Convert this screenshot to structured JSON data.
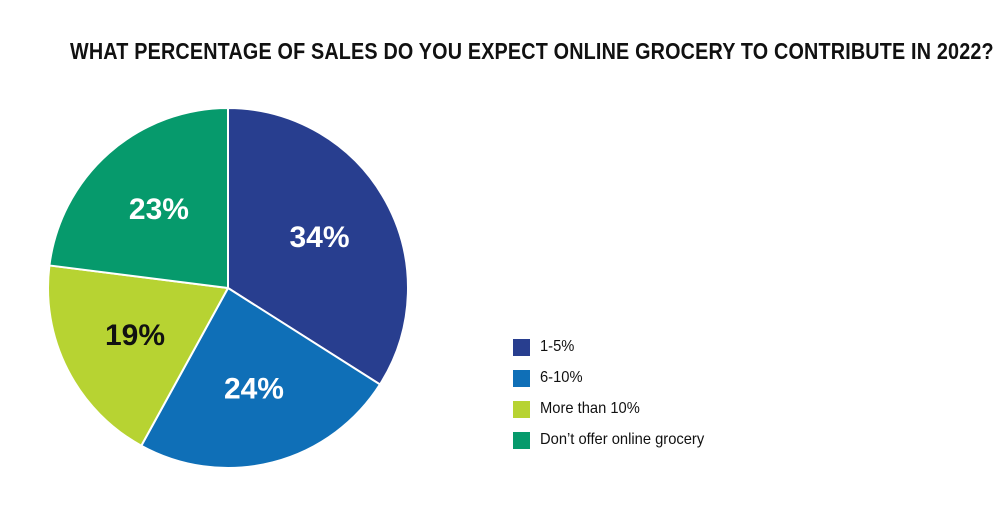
{
  "chart_data": {
    "type": "pie",
    "title": "WHAT PERCENTAGE OF SALES DO YOU EXPECT ONLINE GROCERY TO CONTRIBUTE IN 2022?",
    "legend_position": "right",
    "slices": [
      {
        "label": "1-5%",
        "value": 34,
        "value_label": "34%",
        "color": "#283e8f",
        "text_color": "#ffffff"
      },
      {
        "label": "6-10%",
        "value": 24,
        "value_label": "24%",
        "color": "#0f6fb7",
        "text_color": "#ffffff"
      },
      {
        "label": "More than 10%",
        "value": 19,
        "value_label": "19%",
        "color": "#b7d332",
        "text_color": "#111111"
      },
      {
        "label": "Don’t offer online grocery",
        "value": 23,
        "value_label": "23%",
        "color": "#069a6c",
        "text_color": "#ffffff"
      }
    ]
  }
}
